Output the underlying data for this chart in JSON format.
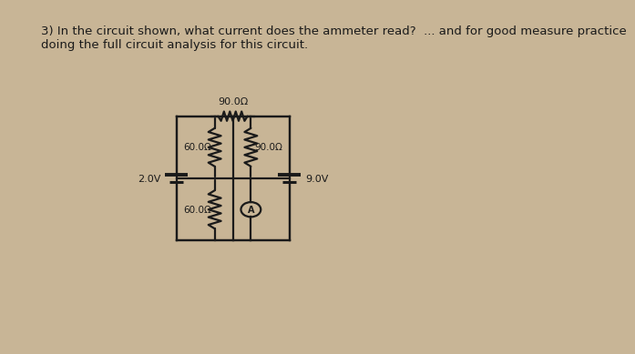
{
  "bg_color": "#c8b596",
  "font_color": "#1a1a1a",
  "title_line1": "3) In the circuit shown, what current does the ammeter read?  ... and for good measure practice",
  "title_line2": "doing the full circuit analysis for this circuit.",
  "title_fontsize": 9.5,
  "lw": 1.6,
  "L": 0.37,
  "R": 0.62,
  "T": 0.68,
  "B": 0.31,
  "MX1": 0.455,
  "MX2": 0.535,
  "label_90_top": "90.0Ω",
  "label_60_upper": "60.0Ω",
  "label_90_right": "90.0Ω",
  "label_60_lower": "60.0Ω",
  "label_left_batt": "2.0V",
  "label_right_batt": "9.0V",
  "label_ammeter": "A",
  "res_amp": 0.014,
  "res_segs": 10,
  "ammeter_r": 0.022
}
